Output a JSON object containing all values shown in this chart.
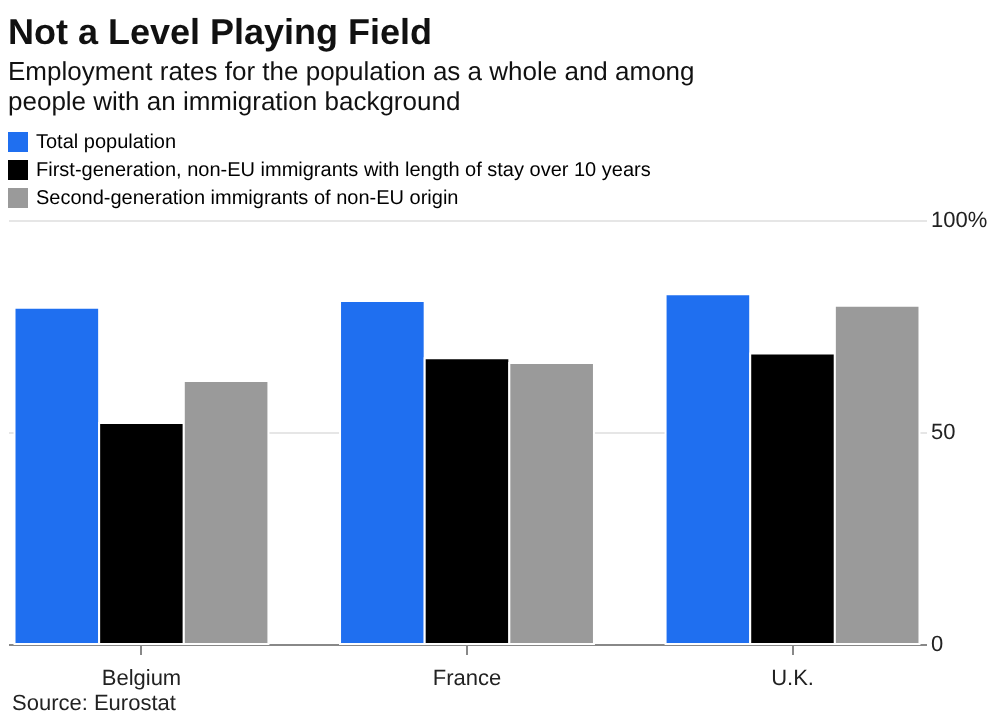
{
  "chart_data": {
    "type": "bar",
    "title": "Not a Level Playing Field",
    "subtitle": "Employment rates for the population as a whole and among people with an immigration background",
    "categories": [
      "Belgium",
      "France",
      "U.K."
    ],
    "series": [
      {
        "name": "Total population",
        "color": "#1f6ff0",
        "values": [
          79.3,
          80.9,
          82.5
        ]
      },
      {
        "name": "First-generation, non-EU immigrants with length of stay over 10 years",
        "color": "#000000",
        "values": [
          52.1,
          67.4,
          68.5
        ]
      },
      {
        "name": "Second-generation immigrants of non-EU origin",
        "color": "#9a9a9a",
        "values": [
          62.0,
          66.3,
          79.8
        ]
      }
    ],
    "ylim": [
      0,
      100
    ],
    "yticks": [
      0,
      50,
      {
        "value": 100,
        "label": "100%"
      }
    ],
    "grid": "y",
    "legend": "top left",
    "annotations": [
      "Source: Eurostat"
    ]
  }
}
